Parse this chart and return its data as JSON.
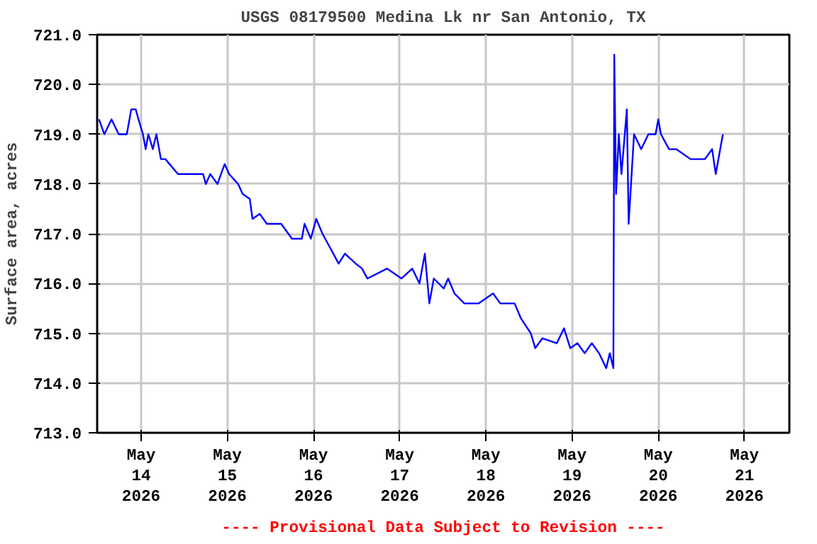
{
  "chart_data": {
    "type": "line",
    "title": "USGS 08179500 Medina Lk nr San Antonio, TX",
    "ylabel": "Surface area, acres",
    "annotations": [
      "---- Provisional Data Subject to Revision ----"
    ],
    "x": [
      "2026-05-13T12:15",
      "2026-05-13T13:45",
      "2026-05-13T15:45",
      "2026-05-13T17:45",
      "2026-05-13T20:00",
      "2026-05-13T21:15",
      "2026-05-13T22:30",
      "2026-05-13T23:15",
      "2026-05-14T00:30",
      "2026-05-14T01:15",
      "2026-05-14T02:00",
      "2026-05-14T03:15",
      "2026-05-14T04:15",
      "2026-05-14T05:30",
      "2026-05-14T06:45",
      "2026-05-14T10:15",
      "2026-05-14T17:15",
      "2026-05-14T18:00",
      "2026-05-14T19:15",
      "2026-05-14T21:15",
      "2026-05-14T23:15",
      "2026-05-15T00:30",
      "2026-05-15T03:00",
      "2026-05-15T04:15",
      "2026-05-15T06:15",
      "2026-05-15T07:00",
      "2026-05-15T09:00",
      "2026-05-15T11:00",
      "2026-05-15T15:00",
      "2026-05-15T18:00",
      "2026-05-15T20:45",
      "2026-05-15T21:30",
      "2026-05-15T23:15",
      "2026-05-16T00:45",
      "2026-05-16T02:30",
      "2026-05-16T04:00",
      "2026-05-16T05:30",
      "2026-05-16T07:00",
      "2026-05-16T08:45",
      "2026-05-16T11:45",
      "2026-05-16T13:30",
      "2026-05-16T15:00",
      "2026-05-16T20:30",
      "2026-05-17T00:30",
      "2026-05-17T03:30",
      "2026-05-17T05:30",
      "2026-05-17T07:00",
      "2026-05-17T08:15",
      "2026-05-17T09:30",
      "2026-05-17T12:15",
      "2026-05-17T13:30",
      "2026-05-17T15:15",
      "2026-05-17T18:00",
      "2026-05-17T22:00",
      "2026-05-18T02:00",
      "2026-05-18T04:00",
      "2026-05-18T08:00",
      "2026-05-18T09:45",
      "2026-05-18T12:30",
      "2026-05-18T13:45",
      "2026-05-18T15:45",
      "2026-05-18T19:45",
      "2026-05-18T21:45",
      "2026-05-18T23:30",
      "2026-05-19T01:30",
      "2026-05-19T03:30",
      "2026-05-19T05:30",
      "2026-05-19T07:30",
      "2026-05-19T09:30",
      "2026-05-19T10:30",
      "2026-05-19T11:30",
      "2026-05-19T11:45",
      "2026-05-19T12:15",
      "2026-05-19T13:00",
      "2026-05-19T13:45",
      "2026-05-19T15:15",
      "2026-05-19T15:45",
      "2026-05-19T17:15",
      "2026-05-19T19:15",
      "2026-05-19T21:15",
      "2026-05-19T23:15",
      "2026-05-20T00:00",
      "2026-05-20T00:45",
      "2026-05-20T03:00",
      "2026-05-20T05:00",
      "2026-05-20T09:00",
      "2026-05-20T13:00",
      "2026-05-20T15:00",
      "2026-05-20T16:00",
      "2026-05-20T18:00"
    ],
    "series": [
      {
        "color": "#0000ff",
        "values": [
          719.3,
          719.0,
          719.3,
          719.0,
          719.0,
          719.5,
          719.5,
          719.3,
          719.0,
          718.7,
          719.0,
          718.7,
          719.0,
          718.5,
          718.5,
          718.2,
          718.2,
          718.0,
          718.2,
          718.0,
          718.4,
          718.2,
          718.0,
          717.8,
          717.7,
          717.3,
          717.4,
          717.2,
          717.2,
          716.9,
          716.9,
          717.2,
          716.9,
          717.3,
          717.0,
          716.8,
          716.6,
          716.4,
          716.6,
          716.4,
          716.3,
          716.1,
          716.3,
          716.1,
          716.3,
          716.0,
          716.6,
          715.6,
          716.1,
          715.9,
          716.1,
          715.8,
          715.6,
          715.6,
          715.8,
          715.6,
          715.6,
          715.3,
          715.0,
          714.7,
          714.9,
          714.8,
          715.1,
          714.7,
          714.8,
          714.6,
          714.8,
          714.6,
          714.3,
          714.6,
          714.3,
          720.6,
          717.8,
          719.0,
          718.2,
          719.5,
          717.2,
          719.0,
          718.7,
          719.0,
          719.0,
          719.3,
          719.0,
          718.7,
          718.7,
          718.5,
          718.5,
          718.7,
          718.2,
          719.0
        ]
      }
    ],
    "xlim": [
      "2026-05-13T11:45",
      "2026-05-21T12:30"
    ],
    "xticks": [
      {
        "value": "2026-05-14",
        "label": "May\n14\n2026"
      },
      {
        "value": "2026-05-15",
        "label": "May\n15\n2026"
      },
      {
        "value": "2026-05-16",
        "label": "May\n16\n2026"
      },
      {
        "value": "2026-05-17",
        "label": "May\n17\n2026"
      },
      {
        "value": "2026-05-18",
        "label": "May\n18\n2026"
      },
      {
        "value": "2026-05-19",
        "label": "May\n19\n2026"
      },
      {
        "value": "2026-05-20",
        "label": "May\n20\n2026"
      },
      {
        "value": "2026-05-21",
        "label": "May\n21\n2026"
      }
    ],
    "ylim": [
      713,
      721
    ],
    "yticks": [
      {
        "value": 713,
        "label": "713.0"
      },
      {
        "value": 714,
        "label": "714.0"
      },
      {
        "value": 715,
        "label": "715.0"
      },
      {
        "value": 716,
        "label": "716.0"
      },
      {
        "value": 717,
        "label": "717.0"
      },
      {
        "value": 718,
        "label": "718.0"
      },
      {
        "value": 719,
        "label": "719.0"
      },
      {
        "value": 720,
        "label": "720.0"
      },
      {
        "value": 721,
        "label": "721.0"
      }
    ],
    "grid": true,
    "marker": "none",
    "line_style": "solid"
  }
}
